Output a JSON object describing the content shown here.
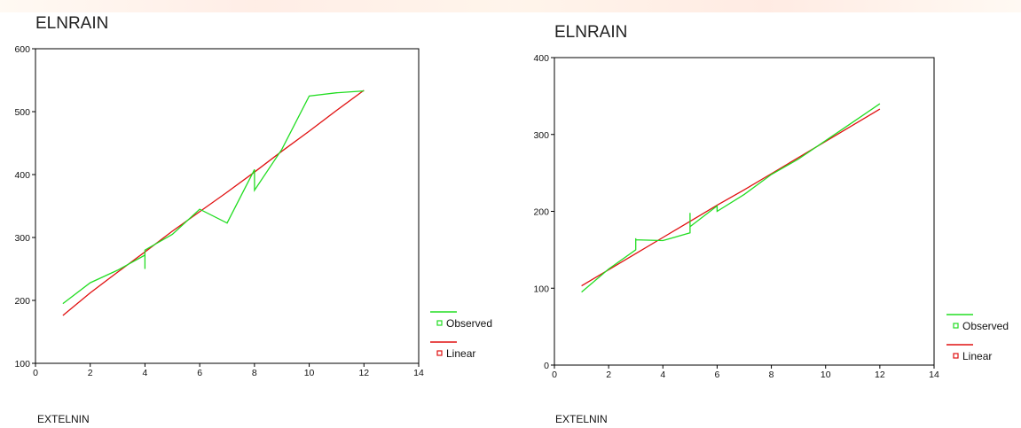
{
  "colors": {
    "observed": "#22dd22",
    "linear": "#e01010",
    "axis": "#000000"
  },
  "chart_data": [
    {
      "type": "line",
      "title": "ELNRAIN",
      "xlabel": "EXTELNIN",
      "ylabel": "",
      "xlim": [
        0,
        14
      ],
      "ylim": [
        100,
        600
      ],
      "xticks": [
        0,
        2,
        4,
        6,
        8,
        10,
        12,
        14
      ],
      "yticks": [
        100,
        200,
        300,
        400,
        500,
        600
      ],
      "legend_placement": "right",
      "series": [
        {
          "name": "Observed",
          "x": [
            1,
            2,
            3,
            4,
            4,
            4,
            5,
            6,
            7,
            8,
            8,
            9,
            10,
            11,
            12
          ],
          "y": [
            195,
            228,
            248,
            272,
            250,
            280,
            305,
            345,
            323,
            408,
            375,
            440,
            525,
            530,
            533
          ]
        },
        {
          "name": "Linear",
          "x": [
            1,
            2,
            3,
            4,
            5,
            6,
            7,
            8,
            9,
            10,
            11,
            12
          ],
          "y": [
            176,
            212,
            245,
            277,
            310,
            341,
            372,
            404,
            437,
            469,
            502,
            534
          ]
        }
      ]
    },
    {
      "type": "line",
      "title": "ELNRAIN",
      "xlabel": "EXTELNIN",
      "ylabel": "",
      "xlim": [
        0,
        14
      ],
      "ylim": [
        0,
        400
      ],
      "xticks": [
        0,
        2,
        4,
        6,
        8,
        10,
        12,
        14
      ],
      "yticks": [
        0,
        100,
        200,
        300,
        400
      ],
      "legend_placement": "right",
      "series": [
        {
          "name": "Observed",
          "x": [
            1,
            2,
            3,
            3,
            3,
            4,
            5,
            5,
            5,
            6,
            6,
            7,
            8,
            9,
            10,
            11,
            12
          ],
          "y": [
            95,
            125,
            150,
            165,
            163,
            162,
            172,
            198,
            180,
            207,
            200,
            222,
            248,
            268,
            292,
            316,
            340
          ]
        },
        {
          "name": "Linear",
          "x": [
            1,
            2,
            3,
            4,
            5,
            6,
            7,
            8,
            9,
            10,
            11,
            12
          ],
          "y": [
            103,
            124,
            145,
            166,
            187,
            208,
            228,
            249,
            270,
            291,
            312,
            333
          ]
        }
      ]
    }
  ]
}
